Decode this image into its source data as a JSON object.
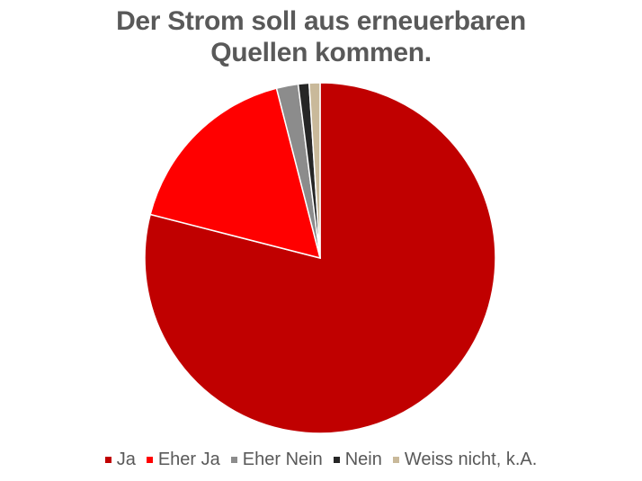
{
  "chart_data": {
    "type": "pie",
    "title": "Der Strom soll aus erneuerbaren Quellen kommen.",
    "categories": [
      "Ja",
      "Eher Ja",
      "Eher Nein",
      "Nein",
      "Weiss nicht, k.A."
    ],
    "values": [
      79,
      17,
      2,
      1,
      1
    ],
    "colors": [
      "#c00000",
      "#ff0000",
      "#8c8c8c",
      "#262626",
      "#c9b99a"
    ],
    "legend": "bottom"
  }
}
